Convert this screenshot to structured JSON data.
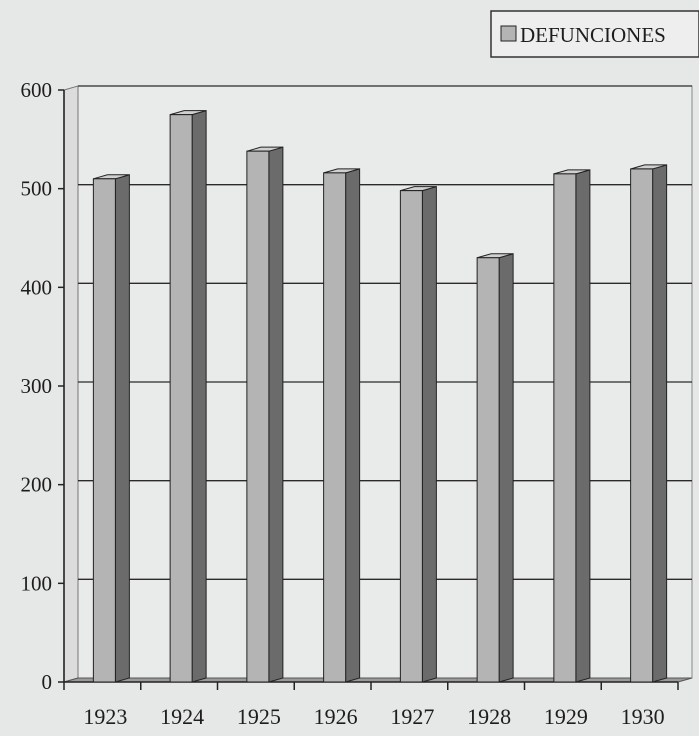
{
  "chart_data": {
    "type": "bar",
    "categories": [
      "1923",
      "1924",
      "1925",
      "1926",
      "1927",
      "1928",
      "1929",
      "1930"
    ],
    "series": [
      {
        "name": "DEFUNCIONES",
        "values": [
          510,
          575,
          538,
          516,
          498,
          430,
          515,
          520
        ]
      }
    ],
    "ylim": [
      0,
      600
    ],
    "yticks": [
      "0",
      "100",
      "200",
      "300",
      "400",
      "500",
      "600"
    ],
    "grid": true,
    "legend": "top-right",
    "three_d": true,
    "colors": {
      "bar_front": "#b4b4b4",
      "bar_side": "#6b6b6b",
      "bar_top": "#d0d0d0",
      "gridline": "#2a2a2a",
      "background": "#e6e7e7"
    }
  }
}
